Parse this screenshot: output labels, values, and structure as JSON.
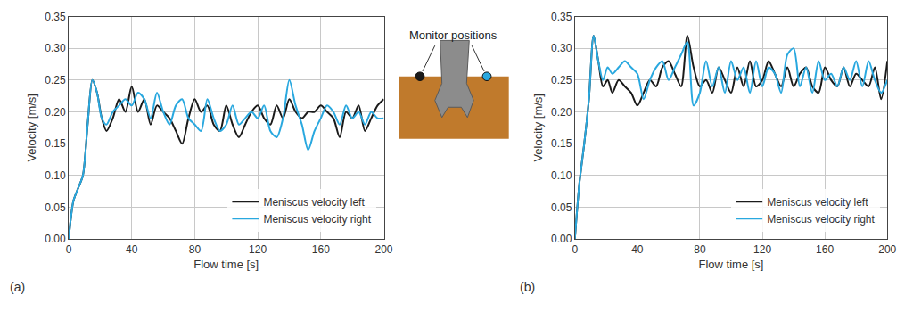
{
  "chart_data": [
    {
      "type": "line",
      "panel_label": "(a)",
      "x_label": "Flow time [s]",
      "y_label": "Velocity [m/s]",
      "x": [
        0,
        3,
        6,
        9,
        12,
        15,
        18,
        21,
        24,
        28,
        32,
        36,
        40,
        44,
        48,
        52,
        56,
        60,
        64,
        68,
        72,
        76,
        80,
        84,
        88,
        92,
        96,
        100,
        104,
        108,
        112,
        116,
        120,
        124,
        128,
        132,
        136,
        140,
        144,
        148,
        152,
        156,
        160,
        164,
        168,
        172,
        176,
        180,
        184,
        188,
        192,
        196,
        200
      ],
      "series": [
        {
          "name": "Meniscus velocity left",
          "color": "#1a1a1a",
          "values": [
            0,
            0.06,
            0.08,
            0.1,
            0.18,
            0.25,
            0.23,
            0.19,
            0.17,
            0.19,
            0.22,
            0.2,
            0.24,
            0.2,
            0.22,
            0.18,
            0.21,
            0.2,
            0.19,
            0.17,
            0.15,
            0.19,
            0.22,
            0.2,
            0.21,
            0.18,
            0.17,
            0.21,
            0.18,
            0.16,
            0.18,
            0.2,
            0.21,
            0.19,
            0.18,
            0.21,
            0.19,
            0.22,
            0.2,
            0.19,
            0.2,
            0.2,
            0.21,
            0.2,
            0.19,
            0.16,
            0.2,
            0.19,
            0.21,
            0.17,
            0.19,
            0.21,
            0.22
          ]
        },
        {
          "name": "Meniscus velocity right",
          "color": "#29a8df",
          "values": [
            0,
            0.06,
            0.08,
            0.1,
            0.18,
            0.25,
            0.23,
            0.19,
            0.18,
            0.2,
            0.21,
            0.22,
            0.21,
            0.23,
            0.22,
            0.19,
            0.23,
            0.2,
            0.18,
            0.21,
            0.22,
            0.19,
            0.18,
            0.17,
            0.22,
            0.19,
            0.17,
            0.18,
            0.21,
            0.18,
            0.19,
            0.2,
            0.19,
            0.21,
            0.17,
            0.16,
            0.19,
            0.25,
            0.21,
            0.18,
            0.14,
            0.17,
            0.19,
            0.21,
            0.2,
            0.18,
            0.21,
            0.19,
            0.2,
            0.18,
            0.2,
            0.19,
            0.19
          ]
        }
      ],
      "xlim": [
        0,
        200
      ],
      "xticks": [
        0,
        40,
        80,
        120,
        160,
        200
      ],
      "ylim": [
        0,
        0.35
      ],
      "yticks": [
        {
          "value": 0,
          "label": "0.00"
        },
        {
          "value": 0.05,
          "label": "0.05"
        },
        {
          "value": 0.1,
          "label": "0.10"
        },
        {
          "value": 0.15,
          "label": "0.15"
        },
        {
          "value": 0.2,
          "label": "0.20"
        },
        {
          "value": 0.25,
          "label": "0.25"
        },
        {
          "value": 0.3,
          "label": "0.30"
        },
        {
          "value": 0.35,
          "label": "0.35"
        }
      ],
      "grid": true,
      "legend": "bottom right"
    },
    {
      "type": "line",
      "panel_label": "(b)",
      "x_label": "Flow time [s]",
      "y_label": "Velocity [m/s]",
      "x": [
        0,
        3,
        6,
        9,
        12,
        15,
        18,
        21,
        24,
        28,
        32,
        36,
        40,
        44,
        48,
        52,
        56,
        60,
        64,
        68,
        72,
        76,
        80,
        84,
        88,
        92,
        96,
        100,
        104,
        108,
        112,
        116,
        120,
        124,
        128,
        132,
        136,
        140,
        144,
        148,
        152,
        156,
        160,
        164,
        168,
        172,
        176,
        180,
        184,
        188,
        192,
        196,
        200
      ],
      "series": [
        {
          "name": "Meniscus velocity left",
          "color": "#1a1a1a",
          "values": [
            0,
            0.09,
            0.15,
            0.22,
            0.32,
            0.28,
            0.24,
            0.25,
            0.23,
            0.25,
            0.24,
            0.23,
            0.21,
            0.23,
            0.25,
            0.24,
            0.27,
            0.28,
            0.26,
            0.24,
            0.32,
            0.27,
            0.24,
            0.25,
            0.23,
            0.27,
            0.25,
            0.23,
            0.27,
            0.24,
            0.28,
            0.24,
            0.25,
            0.28,
            0.26,
            0.24,
            0.27,
            0.24,
            0.26,
            0.27,
            0.24,
            0.23,
            0.27,
            0.25,
            0.24,
            0.27,
            0.24,
            0.26,
            0.25,
            0.24,
            0.27,
            0.22,
            0.28
          ]
        },
        {
          "name": "Meniscus velocity right",
          "color": "#29a8df",
          "values": [
            0,
            0.09,
            0.15,
            0.22,
            0.32,
            0.28,
            0.25,
            0.27,
            0.26,
            0.27,
            0.28,
            0.27,
            0.26,
            0.22,
            0.25,
            0.27,
            0.28,
            0.25,
            0.27,
            0.29,
            0.31,
            0.21,
            0.23,
            0.28,
            0.24,
            0.27,
            0.23,
            0.28,
            0.25,
            0.27,
            0.23,
            0.28,
            0.24,
            0.27,
            0.26,
            0.23,
            0.29,
            0.3,
            0.24,
            0.27,
            0.23,
            0.28,
            0.25,
            0.26,
            0.24,
            0.27,
            0.25,
            0.28,
            0.24,
            0.28,
            0.25,
            0.23,
            0.25
          ]
        }
      ],
      "xlim": [
        0,
        200
      ],
      "xticks": [
        0,
        40,
        80,
        120,
        160,
        200
      ],
      "ylim": [
        0,
        0.35
      ],
      "yticks": [
        {
          "value": 0,
          "label": "0.00"
        },
        {
          "value": 0.05,
          "label": "0.05"
        },
        {
          "value": 0.1,
          "label": "0.10"
        },
        {
          "value": 0.15,
          "label": "0.15"
        },
        {
          "value": 0.2,
          "label": "0.20"
        },
        {
          "value": 0.25,
          "label": "0.25"
        },
        {
          "value": 0.3,
          "label": "0.30"
        },
        {
          "value": 0.35,
          "label": "0.35"
        }
      ],
      "grid": true,
      "legend": "bottom right"
    }
  ],
  "diagram": {
    "label": "Monitor positions",
    "monitor_colors": [
      "#1a1a1a",
      "#29a8df"
    ]
  }
}
